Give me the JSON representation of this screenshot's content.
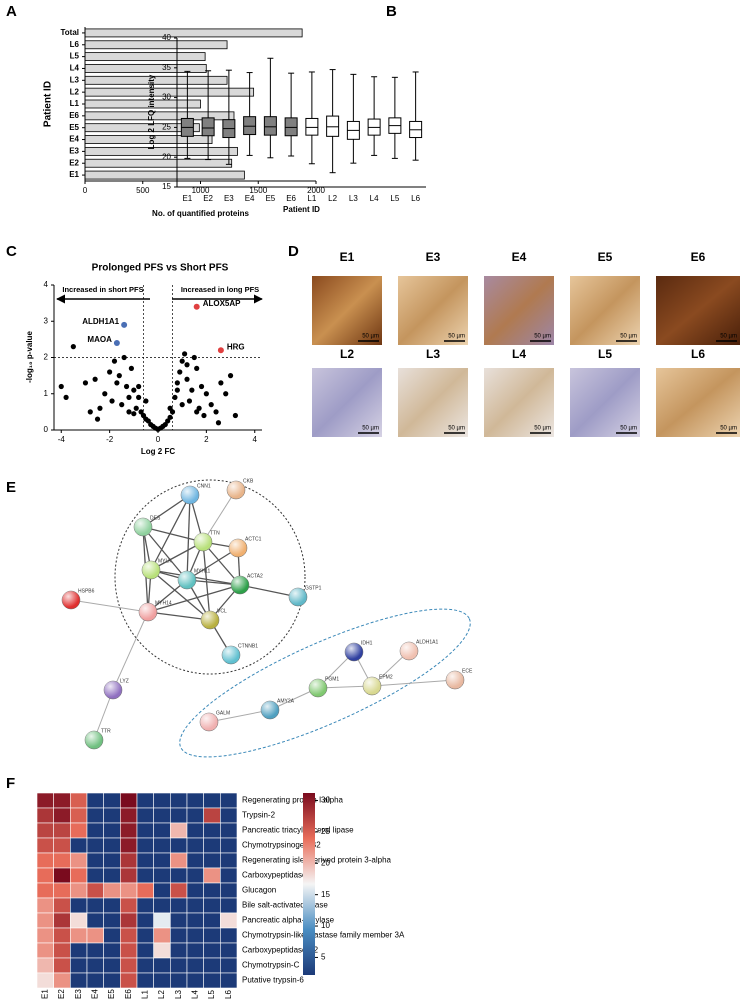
{
  "panel_labels": [
    "A",
    "B",
    "C",
    "D",
    "E",
    "F"
  ],
  "chart_data": [
    {
      "type": "hbar",
      "ylabel": "Patient ID",
      "xlabel": "No. of quantified proteins",
      "categories": [
        "E1",
        "E2",
        "E3",
        "E4",
        "E5",
        "E6",
        "L1",
        "L2",
        "L3",
        "L4",
        "L5",
        "L6",
        "Total"
      ],
      "values": [
        1380,
        1270,
        1320,
        1100,
        990,
        1290,
        1000,
        1460,
        1230,
        1050,
        1040,
        1230,
        1880
      ],
      "color": "#d9d9d9",
      "xlim": [
        0,
        2000
      ],
      "xticks": [
        0,
        500,
        1000,
        1500,
        2000
      ]
    },
    {
      "type": "box",
      "ylabel": "Log 2 LFQ intensity",
      "xlabel": "Patient ID",
      "categories": [
        "E1",
        "E2",
        "E3",
        "E4",
        "E5",
        "E6",
        "L1",
        "L2",
        "L3",
        "L4",
        "L5",
        "L6"
      ],
      "colors": [
        "#808080",
        "#808080",
        "#808080",
        "#808080",
        "#808080",
        "#808080",
        "#ffffff",
        "#ffffff",
        "#ffffff",
        "#ffffff",
        "#ffffff",
        "#ffffff"
      ],
      "min": [
        19.8,
        19.6,
        18.8,
        20.3,
        19.9,
        20.2,
        18.9,
        17.4,
        19.0,
        20.3,
        19.8,
        19.5
      ],
      "q1": [
        23.5,
        23.6,
        23.3,
        23.8,
        23.7,
        23.6,
        23.7,
        23.5,
        23.0,
        23.7,
        24.0,
        23.3
      ],
      "median": [
        25,
        24.9,
        24.8,
        25.2,
        25.1,
        25,
        25,
        25.1,
        24.5,
        25.0,
        25.3,
        24.6
      ],
      "q3": [
        26.5,
        26.6,
        26.3,
        26.8,
        26.8,
        26.6,
        26.5,
        26.9,
        26.0,
        26.4,
        26.6,
        26.0
      ],
      "max": [
        34.4,
        34.5,
        34.6,
        34.2,
        36.6,
        34.1,
        34.3,
        34.7,
        33.9,
        33.5,
        33.4,
        34.3
      ],
      "ylim": [
        15,
        40
      ],
      "yticks": [
        15,
        20,
        25,
        30,
        35,
        40
      ]
    },
    {
      "type": "volcano",
      "title": "Prolonged PFS vs Short PFS",
      "xlabel": "Log 2 FC",
      "ylabel": "-log₁₀ p-value",
      "annotations": [
        "Increased in short PFS",
        "Increased in long PFS"
      ],
      "xlim": [
        -4.3,
        4.3
      ],
      "xticks": [
        -4,
        -2,
        0,
        2,
        4
      ],
      "ylim": [
        0,
        4
      ],
      "yticks": [
        0,
        1,
        2,
        3,
        4
      ],
      "hline": 2,
      "vlines": [
        -0.6,
        0.6
      ],
      "x": [
        -4.0,
        -3.8,
        -3.5,
        -3.0,
        -2.8,
        -2.6,
        -2.4,
        -2.2,
        -2.0,
        -1.9,
        -1.8,
        -1.6,
        -1.5,
        -1.4,
        -1.3,
        -1.2,
        -1.1,
        -1.0,
        -0.9,
        -0.8,
        -0.7,
        -0.6,
        -0.5,
        -0.4,
        -0.3,
        -0.2,
        -0.1,
        0,
        0.1,
        0.2,
        0.3,
        0.4,
        0.5,
        0.6,
        0.7,
        0.8,
        0.9,
        1.0,
        1.1,
        1.2,
        1.3,
        1.4,
        1.5,
        1.6,
        1.7,
        1.8,
        1.9,
        2.0,
        2.2,
        2.4,
        2.6,
        2.8,
        3.0,
        3.2,
        -1.7,
        -1.2,
        -0.8,
        0.8,
        1.2,
        1.6,
        -2.5,
        2.5,
        -1.0,
        1.0,
        0.5,
        -0.5
      ],
      "y": [
        1.2,
        0.9,
        2.3,
        1.3,
        0.5,
        1.4,
        0.6,
        1.0,
        1.6,
        0.8,
        1.9,
        1.5,
        0.7,
        2.0,
        1.2,
        0.5,
        1.7,
        1.1,
        0.6,
        0.9,
        0.5,
        0.4,
        0.3,
        0.25,
        0.15,
        0.1,
        0.05,
        0.02,
        0.05,
        0.1,
        0.15,
        0.25,
        0.35,
        0.5,
        0.9,
        1.3,
        1.6,
        1.9,
        2.1,
        1.4,
        0.8,
        1.1,
        2.0,
        1.7,
        0.6,
        1.2,
        0.4,
        1.0,
        0.7,
        0.5,
        1.3,
        1.0,
        1.5,
        0.4,
        1.3,
        0.9,
        1.2,
        1.1,
        1.8,
        0.5,
        0.3,
        0.2,
        0.45,
        0.7,
        0.6,
        0.8
      ],
      "color": "#000000",
      "highlights": {
        "labels": [
          "ALDH1A1",
          "MAOA",
          "ALOX5AP",
          "HRG"
        ],
        "x": [
          -1.4,
          -1.7,
          1.6,
          2.6
        ],
        "y": [
          2.9,
          2.4,
          3.4,
          2.2
        ],
        "colors": [
          "#4a6fb5",
          "#4a6fb5",
          "#e04040",
          "#e04040"
        ]
      }
    },
    {
      "type": "heatmap",
      "rows": [
        "Regenerating protein I alpha",
        "Trypsin-2",
        "Pancreatic triacylglycerol lipase",
        "Chymotrypsinogen B2",
        "Regenerating islet-derived protein 3-alpha",
        "Carboxypeptidase B",
        "Glucagon",
        "Bile salt-activated lipase",
        "Pancreatic alpha-amylase",
        "Chymotrypsin-like elastase family member 3A",
        "Carboxypeptidase A2",
        "Chymotrypsin-C",
        "Putative trypsin-6"
      ],
      "columns": [
        "E1",
        "E2",
        "E3",
        "E4",
        "E5",
        "E6",
        "L1",
        "L2",
        "L3",
        "L4",
        "L5",
        "L6"
      ],
      "values": [
        [
          30,
          30,
          25,
          2,
          2,
          32,
          2,
          2,
          2,
          2,
          2,
          2
        ],
        [
          28,
          30,
          25,
          2,
          2,
          30,
          2,
          2,
          2,
          2,
          27,
          2
        ],
        [
          27,
          27,
          24,
          2,
          2,
          30,
          2,
          2,
          20,
          2,
          2,
          2
        ],
        [
          26,
          26,
          2,
          2,
          2,
          30,
          2,
          2,
          2,
          2,
          2,
          2
        ],
        [
          24,
          24,
          22,
          2,
          2,
          28,
          2,
          2,
          22,
          2,
          2,
          2
        ],
        [
          24,
          32,
          24,
          2,
          2,
          28,
          2,
          2,
          2,
          2,
          22,
          2
        ],
        [
          24,
          24,
          22,
          26,
          22,
          22,
          24,
          2,
          26,
          2,
          2,
          2
        ],
        [
          22,
          26,
          2,
          2,
          2,
          26,
          2,
          2,
          2,
          2,
          2,
          2
        ],
        [
          22,
          28,
          18,
          2,
          2,
          28,
          2,
          16,
          2,
          2,
          2,
          18
        ],
        [
          22,
          26,
          22,
          22,
          2,
          26,
          2,
          22,
          2,
          2,
          2,
          2
        ],
        [
          22,
          26,
          2,
          2,
          2,
          26,
          2,
          18,
          2,
          2,
          2,
          2
        ],
        [
          20,
          26,
          2,
          2,
          2,
          26,
          2,
          2,
          2,
          2,
          2,
          2
        ],
        [
          18,
          22,
          2,
          2,
          2,
          26,
          2,
          2,
          2,
          2,
          2,
          2
        ]
      ],
      "colorscale": [
        "#1c3a78",
        "#4a8dc2",
        "#f5f5f5",
        "#e86d5a",
        "#7a0b1e"
      ],
      "clim": [
        2.2,
        31.2
      ],
      "cticks": [
        5,
        10,
        15,
        20,
        25,
        30
      ]
    }
  ],
  "ihc": {
    "samples": [
      "E1",
      "E3",
      "E4",
      "E5",
      "E6",
      "L2",
      "L3",
      "L4",
      "L5",
      "L6"
    ],
    "scale_bar": "50 µm"
  },
  "network": {
    "nodes": [
      {
        "label": "CNN1",
        "color": "#6fb5e0"
      },
      {
        "label": "CKB",
        "color": "#e8b48a"
      },
      {
        "label": "DES",
        "color": "#8fd19e"
      },
      {
        "label": "TTN",
        "color": "#b8e07a"
      },
      {
        "label": "ACTC1",
        "color": "#f0b070"
      },
      {
        "label": "MYLK",
        "color": "#b8e07a"
      },
      {
        "label": "MYH11",
        "color": "#5fc0c0"
      },
      {
        "label": "ACTA2",
        "color": "#2ea04a"
      },
      {
        "label": "GSTP1",
        "color": "#60b8c8"
      },
      {
        "label": "HSPB6",
        "color": "#e03030"
      },
      {
        "label": "MYH14",
        "color": "#f0a0a0"
      },
      {
        "label": "VCL",
        "color": "#b8b040"
      },
      {
        "label": "CTNNB1",
        "color": "#60c0d0"
      },
      {
        "label": "LYZ",
        "color": "#9070c0"
      },
      {
        "label": "TTR",
        "color": "#70c080"
      },
      {
        "label": "ECE",
        "color": "#e8b8a0"
      },
      {
        "label": "IDH1",
        "color": "#3040a0"
      },
      {
        "label": "ALDH1A1",
        "color": "#f0c0b0"
      },
      {
        "label": "EPM2",
        "color": "#d8d890"
      },
      {
        "label": "PGM1",
        "color": "#80c870"
      },
      {
        "label": "AMY2A",
        "color": "#50a0c0"
      },
      {
        "label": "GALM",
        "color": "#f0b0b0"
      }
    ]
  }
}
